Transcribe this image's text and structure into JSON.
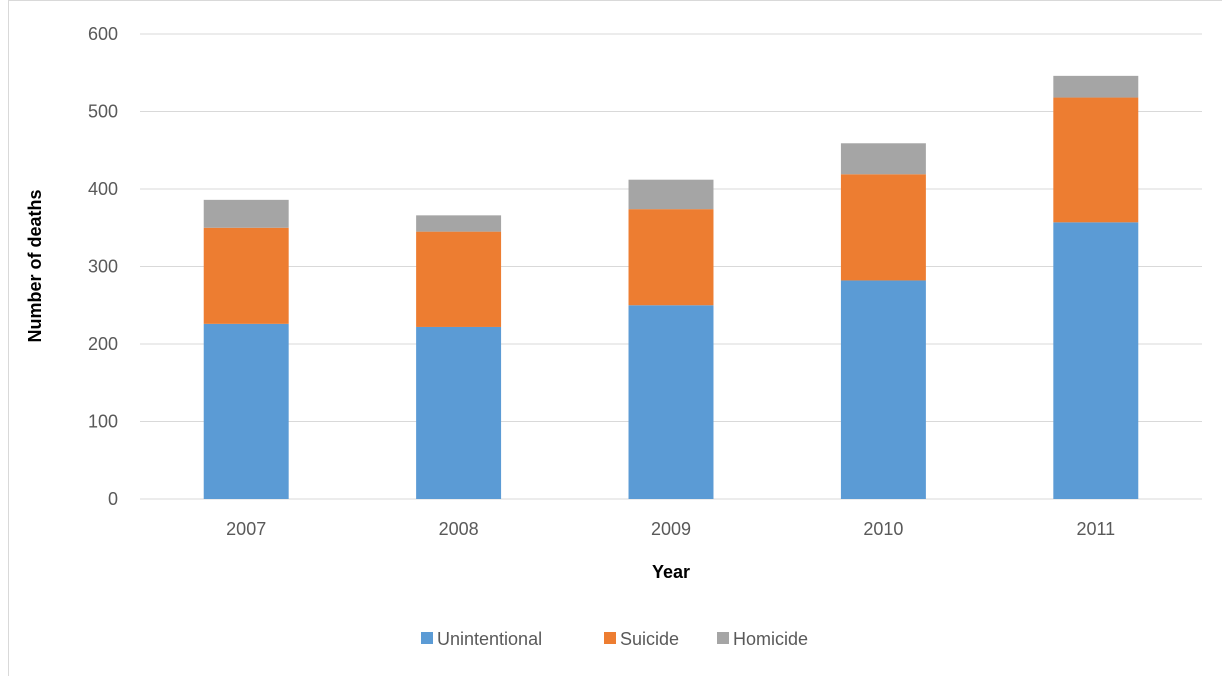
{
  "chart_data": {
    "type": "bar",
    "stacked": true,
    "categories": [
      "2007",
      "2008",
      "2009",
      "2010",
      "2011"
    ],
    "series": [
      {
        "name": "Unintentional",
        "values": [
          226,
          222,
          250,
          282,
          357
        ],
        "color": "#5b9bd5"
      },
      {
        "name": "Suicide",
        "values": [
          124,
          123,
          124,
          137,
          161
        ],
        "color": "#ed7d31"
      },
      {
        "name": "Homicide",
        "values": [
          36,
          21,
          38,
          40,
          28
        ],
        "color": "#a5a5a5"
      }
    ],
    "title": "",
    "xlabel": "Year",
    "ylabel": "Number of deaths",
    "ylim": [
      0,
      600
    ],
    "yticks": [
      "0",
      "100",
      "200",
      "300",
      "400",
      "500",
      "600"
    ],
    "grid": true,
    "legend_position": "bottom"
  }
}
